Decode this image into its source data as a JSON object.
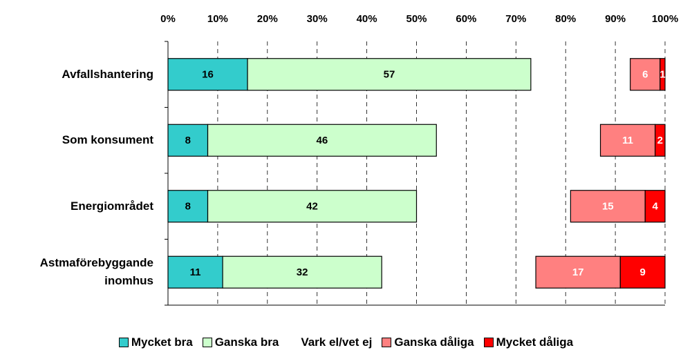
{
  "chart_data": {
    "type": "stacked_barh",
    "categories": [
      "Avfallshantering",
      "Som konsument",
      "Energiområdet",
      "Astmaförebyggande inomhus"
    ],
    "series": [
      {
        "name": "Mycket bra",
        "color": "#33cccc",
        "label_color": "#000000",
        "values": [
          16,
          8,
          8,
          11
        ]
      },
      {
        "name": "Ganska bra",
        "color": "#ccffcc",
        "label_color": "#000000",
        "values": [
          57,
          46,
          42,
          32
        ]
      },
      {
        "name": "Vark el/vet ej",
        "color": "none",
        "values": [
          20,
          33,
          31,
          31
        ]
      },
      {
        "name": "Ganska dåliga",
        "color": "#ff8080",
        "label_color": "#ffffff",
        "values": [
          6,
          11,
          15,
          17
        ]
      },
      {
        "name": "Mycket dåliga",
        "color": "#ff0000",
        "label_color": "#ffffff",
        "values": [
          1,
          2,
          4,
          9
        ]
      }
    ],
    "xlim": [
      0,
      100
    ],
    "xticks": [
      {
        "value": 0,
        "label": "0%"
      },
      {
        "value": 10,
        "label": "10%"
      },
      {
        "value": 20,
        "label": "20%"
      },
      {
        "value": 30,
        "label": "30%"
      },
      {
        "value": 40,
        "label": "40%"
      },
      {
        "value": 50,
        "label": "50%"
      },
      {
        "value": 60,
        "label": "60%"
      },
      {
        "value": 70,
        "label": "70%"
      },
      {
        "value": 80,
        "label": "80%"
      },
      {
        "value": 90,
        "label": "90%"
      },
      {
        "value": 100,
        "label": "100%"
      }
    ],
    "grid": true,
    "legend": "bottom"
  }
}
